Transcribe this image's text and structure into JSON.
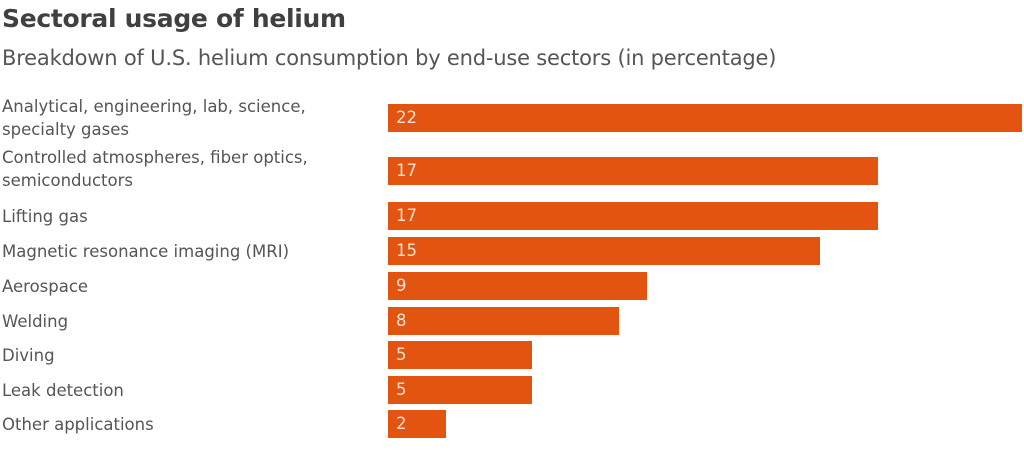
{
  "chart_data": {
    "type": "bar",
    "orientation": "horizontal",
    "title": "Sectoral usage of helium",
    "subtitle": "Breakdown of U.S. helium consumption by end-use sectors (in percentage)",
    "xlabel": "",
    "ylabel": "",
    "xlim": [
      0,
      22
    ],
    "grid": false,
    "bar_color": "#e2540f",
    "label_color": "#fbe3d4",
    "categories": [
      "Analytical, engineering, lab, science, specialty gases",
      "Controlled atmospheres, fiber optics, semiconductors",
      "Lifting gas",
      "Magnetic resonance imaging (MRI)",
      "Aerospace",
      "Welding",
      "Diving",
      "Leak detection",
      "Other applications"
    ],
    "values": [
      22,
      17,
      17,
      15,
      9,
      8,
      5,
      5,
      2
    ],
    "data_labels": [
      "22",
      "17",
      "17",
      "15",
      "9",
      "8",
      "5",
      "5",
      "2"
    ]
  }
}
